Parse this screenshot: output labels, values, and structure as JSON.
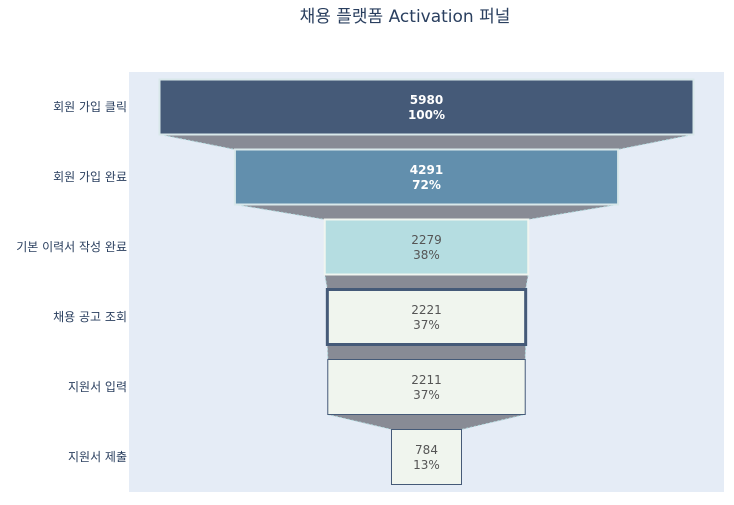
{
  "chart_data": {
    "type": "funnel",
    "title": "채용 플랫폼 Activation 퍼널",
    "stages": [
      {
        "label": "회원 가입 클릭",
        "value": 5980,
        "percent": "100%",
        "color": "#455a78",
        "line": "#d9e8ea",
        "text": "dark",
        "line_width": 2
      },
      {
        "label": "회원 가입 완료",
        "value": 4291,
        "percent": "72%",
        "color": "#628fad",
        "line": "#d9e8ea",
        "text": "dark",
        "line_width": 2
      },
      {
        "label": "기본 이력서 작성 완료",
        "value": 2279,
        "percent": "38%",
        "color": "#b5dde1",
        "line": "#f0f5f0",
        "text": "light",
        "line_width": 2
      },
      {
        "label": "채용 공고 조회",
        "value": 2221,
        "percent": "37%",
        "color": "#f0f5ee",
        "line": "#455a78",
        "text": "light",
        "line_width": 3
      },
      {
        "label": "지원서 입력",
        "value": 2211,
        "percent": "37%",
        "color": "#f0f5ee",
        "line": "#455a78",
        "text": "light",
        "line_width": 1
      },
      {
        "label": "지원서 제출",
        "value": 784,
        "percent": "13%",
        "color": "#f0f5ee",
        "line": "#455a78",
        "text": "light",
        "line_width": 1
      }
    ],
    "connector_color": "#888b95",
    "plot_bg": "#e5ecf6"
  }
}
